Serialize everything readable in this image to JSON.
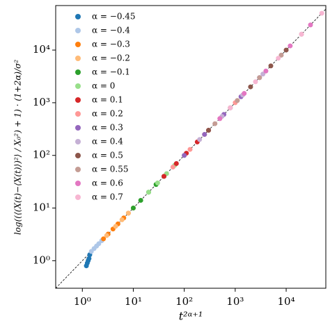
{
  "chart_data": {
    "type": "scatter",
    "x_label": "t²ᵅ⁺¹",
    "y_label": "log((⟨(X(t)−⟨X(t)⟩)²⟩ / X₀²) + 1) · (1+2α)/σ²",
    "log_x": true,
    "log_y": true,
    "xlim": [
      0.3,
      60000
    ],
    "ylim": [
      0.3,
      70000
    ],
    "xticks": [
      {
        "value": 1,
        "label": "10⁰"
      },
      {
        "value": 10,
        "label": "10¹"
      },
      {
        "value": 100,
        "label": "10²"
      },
      {
        "value": 1000,
        "label": "10³"
      },
      {
        "value": 10000,
        "label": "10⁴"
      }
    ],
    "yticks": [
      {
        "value": 1,
        "label": "10⁰"
      },
      {
        "value": 10,
        "label": "10¹"
      },
      {
        "value": 100,
        "label": "10²"
      },
      {
        "value": 1000,
        "label": "10³"
      },
      {
        "value": 10000,
        "label": "10⁴"
      }
    ],
    "legend_position": "upper left",
    "series": [
      {
        "name": "α = −0.45",
        "color": "#1f77b4",
        "x": [
          1.2,
          1.25,
          1.3,
          1.35,
          1.4
        ],
        "y": [
          0.8,
          0.9,
          1.0,
          1.1,
          1.3
        ]
      },
      {
        "name": "α = −0.4",
        "color": "#aec7e8",
        "x": [
          1.5,
          1.7,
          1.9,
          2.1,
          2.4
        ],
        "y": [
          1.5,
          1.7,
          1.9,
          2.1,
          2.4
        ]
      },
      {
        "name": "α = −0.3",
        "color": "#ff7f0e",
        "x": [
          2.6,
          3.2,
          4,
          5,
          6.5,
          8
        ],
        "y": [
          2.6,
          3.2,
          4,
          5,
          6.5,
          8
        ]
      },
      {
        "name": "α = −0.2",
        "color": "#ffbb78",
        "x": [
          3,
          4.5,
          6,
          8,
          10
        ],
        "y": [
          3,
          4.5,
          6,
          8,
          10
        ]
      },
      {
        "name": "α = −0.1",
        "color": "#2ca02c",
        "x": [
          10,
          14,
          20,
          28,
          40
        ],
        "y": [
          10,
          14,
          20,
          28,
          40
        ]
      },
      {
        "name": "α = 0",
        "color": "#98df8a",
        "x": [
          20,
          30,
          45,
          65,
          100
        ],
        "y": [
          20,
          30,
          45,
          65,
          100
        ]
      },
      {
        "name": "α = 0.1",
        "color": "#d62728",
        "x": [
          40,
          70,
          110,
          180,
          300
        ],
        "y": [
          40,
          70,
          110,
          180,
          300
        ]
      },
      {
        "name": "α = 0.2",
        "color": "#ff9896",
        "x": [
          60,
          130,
          250,
          500,
          1000
        ],
        "y": [
          60,
          130,
          250,
          500,
          1000
        ]
      },
      {
        "name": "α = 0.3",
        "color": "#9467bd",
        "x": [
          100,
          250,
          600,
          1300,
          3000
        ],
        "y": [
          100,
          250,
          600,
          1300,
          3000
        ]
      },
      {
        "name": "α = 0.4",
        "color": "#c5b0d5",
        "x": [
          200,
          550,
          1400,
          3500,
          8000
        ],
        "y": [
          200,
          550,
          1400,
          3500,
          8000
        ]
      },
      {
        "name": "α = 0.5",
        "color": "#8c564b",
        "x": [
          300,
          800,
          2000,
          5000,
          10000
        ],
        "y": [
          300,
          800,
          2000,
          5000,
          10000
        ]
      },
      {
        "name": "α = 0.55",
        "color": "#c49c94",
        "x": [
          400,
          1100,
          3000,
          8000,
          20000
        ],
        "y": [
          400,
          1100,
          3000,
          8000,
          20000
        ]
      },
      {
        "name": "α = 0.6",
        "color": "#e377c2",
        "x": [
          500,
          1500,
          4000,
          12000,
          30000
        ],
        "y": [
          500,
          1500,
          4000,
          12000,
          30000
        ]
      },
      {
        "name": "α = 0.7",
        "color": "#f7b6d2",
        "x": [
          800,
          2500,
          7000,
          20000,
          50000
        ],
        "y": [
          800,
          2500,
          7000,
          20000,
          50000
        ]
      }
    ]
  }
}
